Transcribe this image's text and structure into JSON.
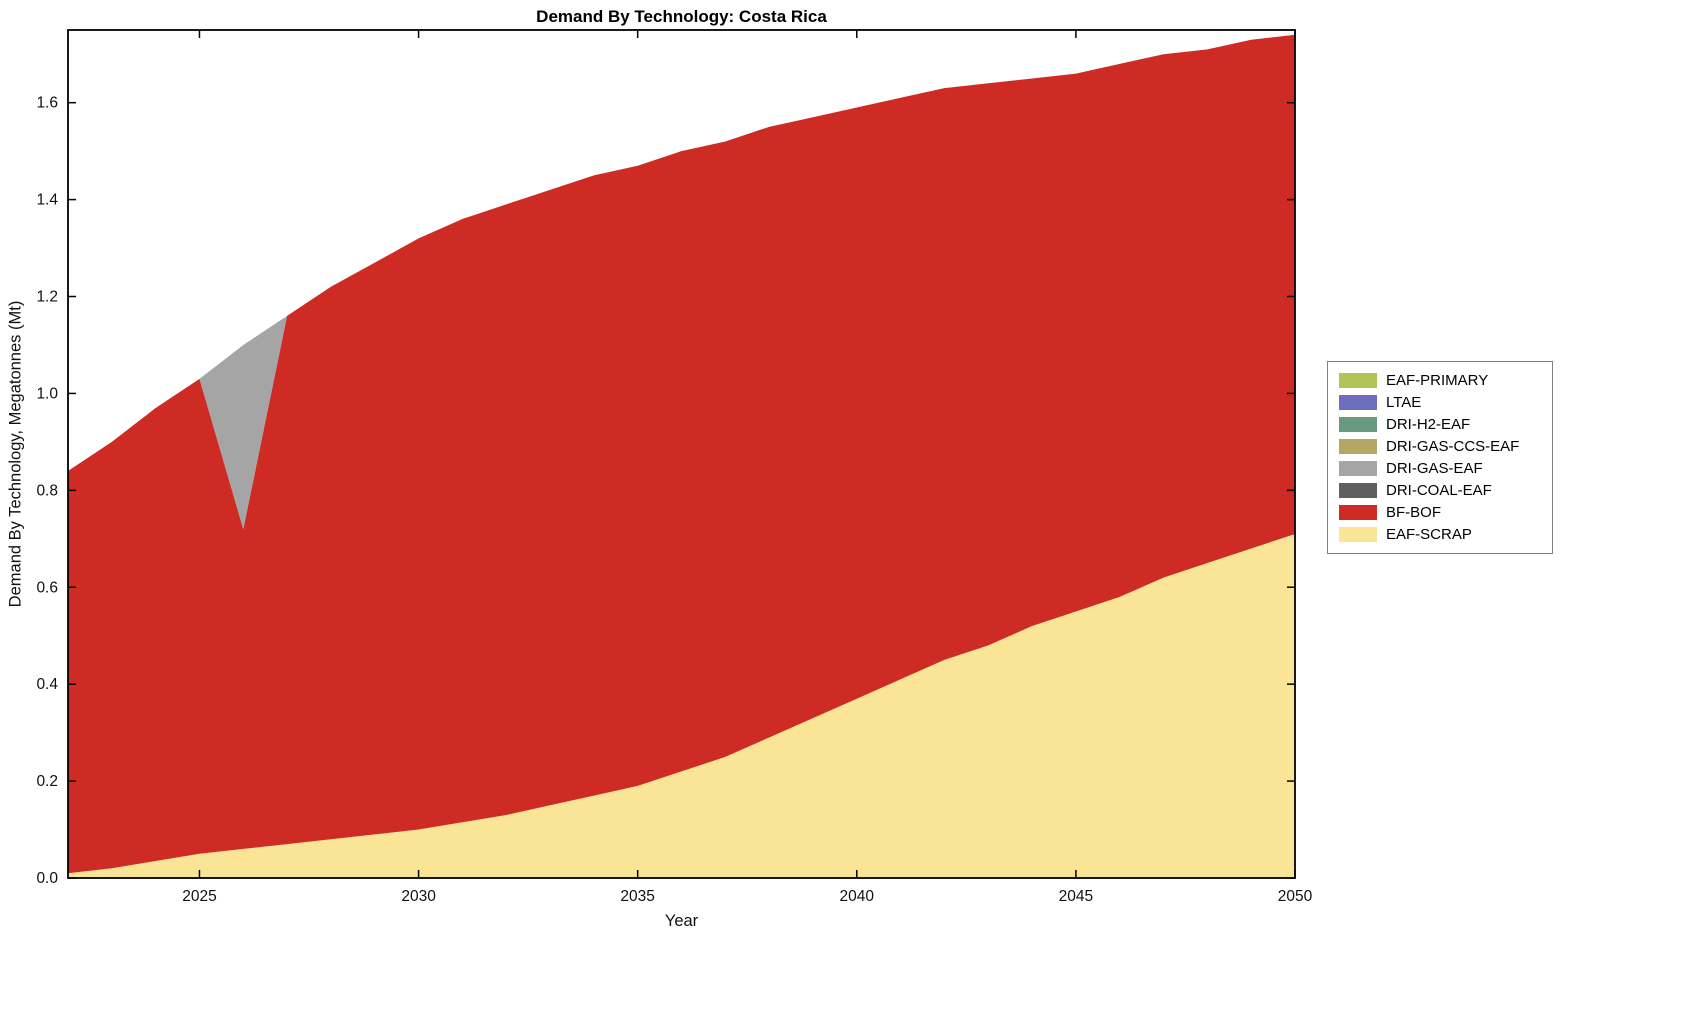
{
  "chart_data": {
    "type": "area",
    "stacked": true,
    "title": "Demand By Technology: Costa Rica",
    "xlabel": "Year",
    "ylabel": "Demand By Technology, Megatonnes (Mt)",
    "xlim": [
      2022,
      2050
    ],
    "ylim": [
      0,
      1.75
    ],
    "x_ticks": [
      2025,
      2030,
      2035,
      2040,
      2045,
      2050
    ],
    "y_ticks": [
      0.0,
      0.2,
      0.4,
      0.6,
      0.8,
      1.0,
      1.2,
      1.4,
      1.6
    ],
    "grid": false,
    "legend_position": "right-outside",
    "x": [
      2022,
      2023,
      2024,
      2025,
      2026,
      2027,
      2028,
      2029,
      2030,
      2031,
      2032,
      2033,
      2034,
      2035,
      2036,
      2037,
      2038,
      2039,
      2040,
      2041,
      2042,
      2043,
      2044,
      2045,
      2046,
      2047,
      2048,
      2049,
      2050
    ],
    "series": [
      {
        "name": "EAF-SCRAP",
        "color": "#FAE597",
        "values": [
          0.01,
          0.02,
          0.035,
          0.05,
          0.06,
          0.07,
          0.08,
          0.09,
          0.1,
          0.115,
          0.13,
          0.15,
          0.17,
          0.19,
          0.22,
          0.25,
          0.29,
          0.33,
          0.37,
          0.41,
          0.45,
          0.48,
          0.52,
          0.55,
          0.58,
          0.62,
          0.65,
          0.68,
          0.71
        ]
      },
      {
        "name": "BF-BOF",
        "color": "#CE2B24",
        "values": [
          0.83,
          0.88,
          0.935,
          0.98,
          0.66,
          1.09,
          1.14,
          1.18,
          1.22,
          1.245,
          1.26,
          1.27,
          1.28,
          1.28,
          1.28,
          1.27,
          1.26,
          1.24,
          1.22,
          1.2,
          1.18,
          1.16,
          1.13,
          1.11,
          1.1,
          1.08,
          1.06,
          1.05,
          1.03
        ]
      },
      {
        "name": "DRI-COAL-EAF",
        "color": "#5F5F5F",
        "values": [
          0,
          0,
          0,
          0,
          0,
          0,
          0,
          0,
          0,
          0,
          0,
          0,
          0,
          0,
          0,
          0,
          0,
          0,
          0,
          0,
          0,
          0,
          0,
          0,
          0,
          0,
          0,
          0,
          0
        ]
      },
      {
        "name": "DRI-GAS-EAF",
        "color": "#A5A5A5",
        "values": [
          0,
          0,
          0,
          0,
          0.38,
          0,
          0,
          0,
          0,
          0,
          0,
          0,
          0,
          0,
          0,
          0,
          0,
          0,
          0,
          0,
          0,
          0,
          0,
          0,
          0,
          0,
          0,
          0,
          0
        ]
      },
      {
        "name": "DRI-GAS-CCS-EAF",
        "color": "#B3A763",
        "values": [
          0,
          0,
          0,
          0,
          0,
          0,
          0,
          0,
          0,
          0,
          0,
          0,
          0,
          0,
          0,
          0,
          0,
          0,
          0,
          0,
          0,
          0,
          0,
          0,
          0,
          0,
          0,
          0,
          0
        ]
      },
      {
        "name": "DRI-H2-EAF",
        "color": "#66997E",
        "values": [
          0,
          0,
          0,
          0,
          0,
          0,
          0,
          0,
          0,
          0,
          0,
          0,
          0,
          0,
          0,
          0,
          0,
          0,
          0,
          0,
          0,
          0,
          0,
          0,
          0,
          0,
          0,
          0,
          0
        ]
      },
      {
        "name": "LTAE",
        "color": "#6E6EBE",
        "values": [
          0,
          0,
          0,
          0,
          0,
          0,
          0,
          0,
          0,
          0,
          0,
          0,
          0,
          0,
          0,
          0,
          0,
          0,
          0,
          0,
          0,
          0,
          0,
          0,
          0,
          0,
          0,
          0,
          0
        ]
      },
      {
        "name": "EAF-PRIMARY",
        "color": "#B4C356",
        "values": [
          0,
          0,
          0,
          0,
          0,
          0,
          0,
          0,
          0,
          0,
          0,
          0,
          0,
          0,
          0,
          0,
          0,
          0,
          0,
          0,
          0,
          0,
          0,
          0,
          0,
          0,
          0,
          0,
          0
        ]
      }
    ],
    "legend": [
      "EAF-PRIMARY",
      "LTAE",
      "DRI-H2-EAF",
      "DRI-GAS-CCS-EAF",
      "DRI-GAS-EAF",
      "DRI-COAL-EAF",
      "BF-BOF",
      "EAF-SCRAP"
    ]
  }
}
